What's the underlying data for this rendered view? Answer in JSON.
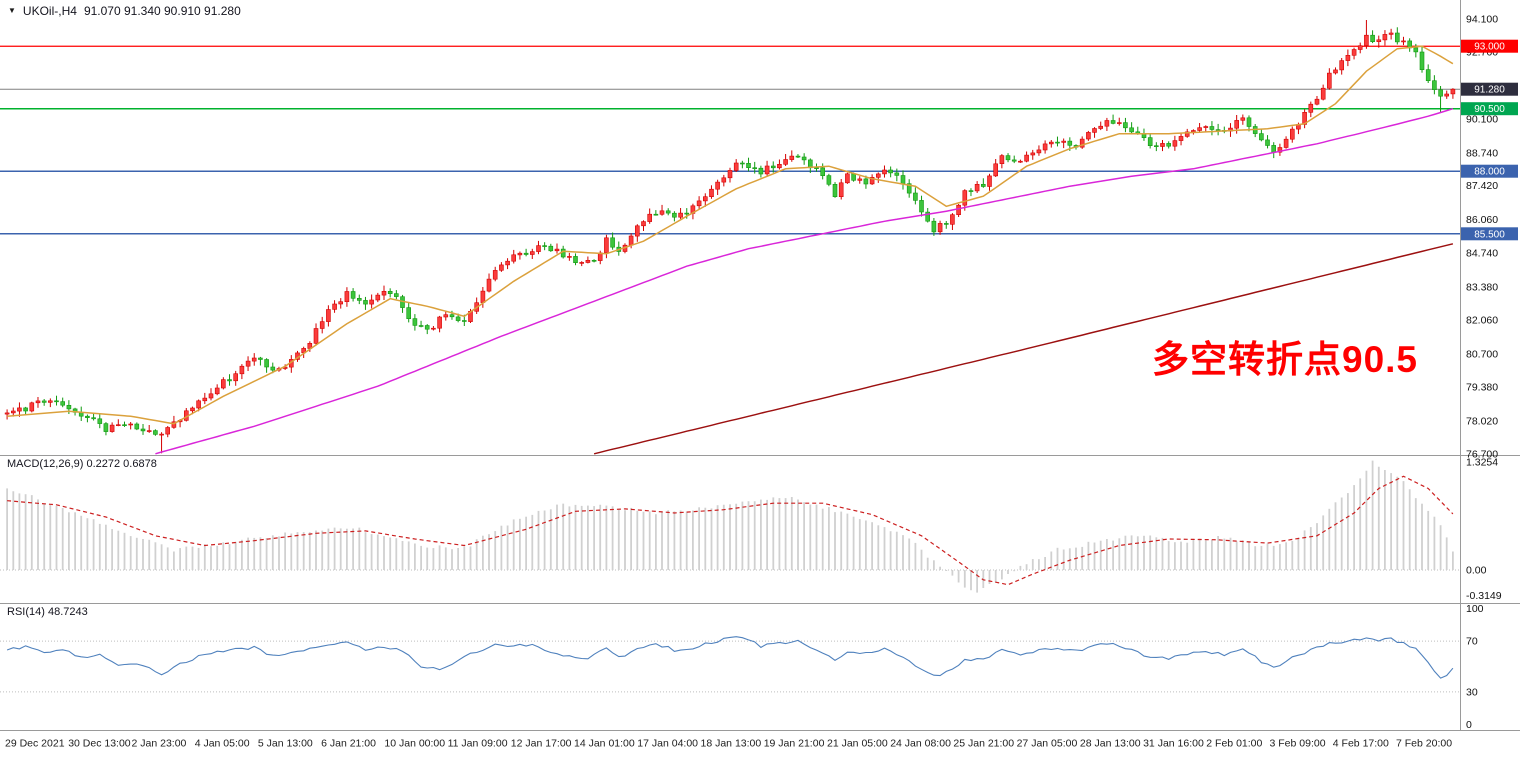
{
  "header": {
    "dropdown_icon": "▼",
    "symbol_title": "UKOil-,H4",
    "ohlc_values": "91.070 91.340 90.910 91.280"
  },
  "indicators": {
    "macd_label": "MACD(12,26,9) 0.2272 0.6878",
    "rsi_label": "RSI(14) 48.7243"
  },
  "annotation": {
    "text": "多空转折点90.5",
    "color": "#ff0000"
  },
  "chart_data": [
    {
      "type": "candlestick",
      "symbol": "UKOil-",
      "timeframe": "H4",
      "ohlc": {
        "open": 91.07,
        "high": 91.34,
        "low": 90.91,
        "close": 91.28
      },
      "current_price": 91.28,
      "ylim": [
        76.65,
        94.85
      ],
      "y_ticks": [
        94.1,
        92.76,
        90.1,
        88.74,
        87.42,
        86.06,
        84.74,
        83.38,
        82.06,
        80.7,
        79.38,
        78.02,
        76.7
      ],
      "price_lines": [
        {
          "price": 93.0,
          "label": "93.000",
          "line_color": "#ff0000",
          "badge_color": "#ff0000",
          "line_width": 1.2,
          "name": "resistance-93"
        },
        {
          "price": 91.28,
          "label": "91.280",
          "line_color": "#808080",
          "badge_color": "#2e2e3e",
          "line_width": 1.0,
          "name": "current-price"
        },
        {
          "price": 90.5,
          "label": "90.500",
          "line_color": "#00b22d",
          "badge_color": "#00a651",
          "line_width": 1.5,
          "name": "pivot-90-5"
        },
        {
          "price": 88.0,
          "label": "88.000",
          "line_color": "#3b63ae",
          "badge_color": "#3b63ae",
          "line_width": 1.6,
          "name": "support-88"
        },
        {
          "price": 85.5,
          "label": "85.500",
          "line_color": "#3b63ae",
          "badge_color": "#3b63ae",
          "line_width": 1.6,
          "name": "support-85-5"
        }
      ],
      "x_labels": [
        "29 Dec 2021",
        "30 Dec 13:00",
        "2 Jan 23:00",
        "4 Jan 05:00",
        "5 Jan 13:00",
        "6 Jan 21:00",
        "10 Jan 00:00",
        "11 Jan 09:00",
        "12 Jan 17:00",
        "14 Jan 01:00",
        "17 Jan 04:00",
        "18 Jan 13:00",
        "19 Jan 21:00",
        "21 Jan 05:00",
        "24 Jan 08:00",
        "25 Jan 21:00",
        "27 Jan 05:00",
        "28 Jan 13:00",
        "31 Jan 16:00",
        "2 Feb 01:00",
        "3 Feb 09:00",
        "4 Feb 17:00",
        "7 Feb 20:00"
      ],
      "candle_count": 235,
      "close_anchors": [
        [
          0,
          78.3
        ],
        [
          5,
          78.7
        ],
        [
          8,
          78.8
        ],
        [
          12,
          78.3
        ],
        [
          16,
          77.7
        ],
        [
          19,
          77.9
        ],
        [
          22,
          77.7
        ],
        [
          25,
          77.4
        ],
        [
          28,
          78.1
        ],
        [
          33,
          79.2
        ],
        [
          38,
          80.1
        ],
        [
          40,
          80.6
        ],
        [
          43,
          80.0
        ],
        [
          46,
          80.4
        ],
        [
          49,
          81.2
        ],
        [
          52,
          82.4
        ],
        [
          55,
          83.1
        ],
        [
          58,
          82.7
        ],
        [
          61,
          83.2
        ],
        [
          63,
          82.9
        ],
        [
          66,
          81.9
        ],
        [
          68,
          81.6
        ],
        [
          71,
          82.3
        ],
        [
          74,
          81.9
        ],
        [
          77,
          83.3
        ],
        [
          80,
          84.3
        ],
        [
          83,
          84.7
        ],
        [
          86,
          85.0
        ],
        [
          89,
          84.8
        ],
        [
          92,
          84.4
        ],
        [
          95,
          84.3
        ],
        [
          97,
          85.3
        ],
        [
          99,
          84.7
        ],
        [
          102,
          85.8
        ],
        [
          105,
          86.4
        ],
        [
          108,
          86.1
        ],
        [
          111,
          86.5
        ],
        [
          114,
          87.3
        ],
        [
          117,
          88.0
        ],
        [
          119,
          88.4
        ],
        [
          122,
          88.0
        ],
        [
          125,
          88.3
        ],
        [
          128,
          88.6
        ],
        [
          131,
          88.1
        ],
        [
          134,
          87.1
        ],
        [
          136,
          87.8
        ],
        [
          139,
          87.6
        ],
        [
          142,
          88.1
        ],
        [
          145,
          87.6
        ],
        [
          148,
          86.3
        ],
        [
          150,
          85.7
        ],
        [
          152,
          85.9
        ],
        [
          155,
          87.2
        ],
        [
          158,
          87.5
        ],
        [
          161,
          88.6
        ],
        [
          164,
          88.4
        ],
        [
          167,
          88.9
        ],
        [
          170,
          89.2
        ],
        [
          173,
          89.0
        ],
        [
          176,
          89.8
        ],
        [
          179,
          90.0
        ],
        [
          182,
          89.6
        ],
        [
          185,
          89.1
        ],
        [
          188,
          89.0
        ],
        [
          191,
          89.5
        ],
        [
          194,
          89.8
        ],
        [
          197,
          89.6
        ],
        [
          200,
          90.2
        ],
        [
          203,
          89.3
        ],
        [
          205,
          88.8
        ],
        [
          208,
          89.6
        ],
        [
          211,
          90.6
        ],
        [
          214,
          91.8
        ],
        [
          217,
          92.6
        ],
        [
          220,
          93.4
        ],
        [
          222,
          93.2
        ],
        [
          224,
          93.5
        ],
        [
          226,
          93.1
        ],
        [
          228,
          92.7
        ],
        [
          230,
          91.6
        ],
        [
          232,
          90.9
        ],
        [
          234,
          91.28
        ]
      ],
      "wick_overrides": {
        "25": {
          "low": 76.72
        },
        "220": {
          "high": 94.05
        },
        "232": {
          "low": 90.35
        }
      },
      "moving_averages": [
        {
          "name": "MA long",
          "color": "#9c1010",
          "anchors": [
            [
              95,
              76.7
            ],
            [
              165,
              80.9
            ],
            [
              234,
              85.1
            ]
          ]
        },
        {
          "name": "MA slow",
          "color": "#d926d9",
          "anchors": [
            [
              24,
              76.7
            ],
            [
              40,
              77.8
            ],
            [
              60,
              79.4
            ],
            [
              80,
              81.4
            ],
            [
              95,
              82.8
            ],
            [
              110,
              84.2
            ],
            [
              120,
              84.9
            ],
            [
              132,
              85.5
            ],
            [
              142,
              86.0
            ],
            [
              152,
              86.4
            ],
            [
              162,
              86.9
            ],
            [
              172,
              87.4
            ],
            [
              182,
              87.8
            ],
            [
              192,
              88.1
            ],
            [
              202,
              88.6
            ],
            [
              212,
              89.1
            ],
            [
              222,
              89.7
            ],
            [
              230,
              90.2
            ],
            [
              234,
              90.5
            ]
          ]
        },
        {
          "name": "MA fast",
          "color": "#dba13c",
          "anchors": [
            [
              0,
              78.2
            ],
            [
              10,
              78.4
            ],
            [
              20,
              78.2
            ],
            [
              27,
              77.9
            ],
            [
              35,
              79.0
            ],
            [
              45,
              80.2
            ],
            [
              55,
              81.9
            ],
            [
              62,
              82.9
            ],
            [
              68,
              82.6
            ],
            [
              74,
              82.2
            ],
            [
              82,
              83.6
            ],
            [
              90,
              84.8
            ],
            [
              97,
              84.7
            ],
            [
              103,
              85.2
            ],
            [
              110,
              86.2
            ],
            [
              118,
              87.3
            ],
            [
              126,
              88.1
            ],
            [
              133,
              88.2
            ],
            [
              140,
              87.7
            ],
            [
              147,
              87.4
            ],
            [
              152,
              86.6
            ],
            [
              158,
              87.0
            ],
            [
              165,
              88.2
            ],
            [
              172,
              88.9
            ],
            [
              180,
              89.5
            ],
            [
              188,
              89.5
            ],
            [
              196,
              89.6
            ],
            [
              204,
              89.7
            ],
            [
              210,
              89.9
            ],
            [
              215,
              90.7
            ],
            [
              220,
              92.0
            ],
            [
              225,
              92.9
            ],
            [
              229,
              93.0
            ],
            [
              232,
              92.6
            ],
            [
              234,
              92.3
            ]
          ]
        }
      ],
      "colors": {
        "up": "#fa3c3c",
        "up_stroke": "#d40000",
        "down": "#3cc43c",
        "down_stroke": "#0f9a0f"
      }
    },
    {
      "type": "bar",
      "name": "MACD",
      "label": "MACD(12,26,9) 0.2272 0.6878",
      "params": "12,26,9",
      "values": {
        "main": 0.2272,
        "signal": 0.6878
      },
      "scale_ticks": [
        "1.3254",
        "0.00",
        "-0.3149"
      ],
      "hist_color": "#d0d0d0",
      "signal_color": "#cc2020",
      "hist_anchors": [
        [
          0,
          0.98
        ],
        [
          4,
          0.9
        ],
        [
          16,
          0.55
        ],
        [
          27,
          0.25
        ],
        [
          37,
          0.35
        ],
        [
          48,
          0.48
        ],
        [
          56,
          0.52
        ],
        [
          67,
          0.3
        ],
        [
          74,
          0.27
        ],
        [
          83,
          0.65
        ],
        [
          90,
          0.8
        ],
        [
          98,
          0.78
        ],
        [
          104,
          0.7
        ],
        [
          112,
          0.75
        ],
        [
          120,
          0.85
        ],
        [
          127,
          0.9
        ],
        [
          133,
          0.75
        ],
        [
          140,
          0.6
        ],
        [
          146,
          0.4
        ],
        [
          150,
          0.1
        ],
        [
          154,
          -0.15
        ],
        [
          157,
          -0.28
        ],
        [
          161,
          -0.1
        ],
        [
          164,
          0.05
        ],
        [
          170,
          0.25
        ],
        [
          177,
          0.35
        ],
        [
          183,
          0.42
        ],
        [
          190,
          0.35
        ],
        [
          196,
          0.4
        ],
        [
          203,
          0.3
        ],
        [
          208,
          0.35
        ],
        [
          212,
          0.6
        ],
        [
          217,
          0.95
        ],
        [
          221,
          1.3254
        ],
        [
          225,
          1.15
        ],
        [
          228,
          0.9
        ],
        [
          232,
          0.55
        ],
        [
          234,
          0.2272
        ]
      ],
      "signal_anchors": [
        [
          0,
          0.85
        ],
        [
          8,
          0.8
        ],
        [
          16,
          0.65
        ],
        [
          24,
          0.42
        ],
        [
          32,
          0.3
        ],
        [
          40,
          0.36
        ],
        [
          50,
          0.45
        ],
        [
          58,
          0.48
        ],
        [
          66,
          0.38
        ],
        [
          74,
          0.3
        ],
        [
          84,
          0.5
        ],
        [
          92,
          0.72
        ],
        [
          100,
          0.75
        ],
        [
          108,
          0.7
        ],
        [
          116,
          0.74
        ],
        [
          124,
          0.82
        ],
        [
          132,
          0.82
        ],
        [
          140,
          0.68
        ],
        [
          148,
          0.42
        ],
        [
          154,
          0.1
        ],
        [
          158,
          -0.12
        ],
        [
          162,
          -0.18
        ],
        [
          166,
          -0.05
        ],
        [
          172,
          0.12
        ],
        [
          180,
          0.3
        ],
        [
          188,
          0.38
        ],
        [
          196,
          0.37
        ],
        [
          204,
          0.33
        ],
        [
          212,
          0.42
        ],
        [
          218,
          0.7
        ],
        [
          222,
          1.0
        ],
        [
          226,
          1.15
        ],
        [
          230,
          1.0
        ],
        [
          234,
          0.6878
        ]
      ]
    },
    {
      "type": "line",
      "name": "RSI",
      "label": "RSI(14) 48.7243",
      "period": 14,
      "value": 48.7243,
      "scale_ticks": [
        "100",
        "70",
        "30",
        "0"
      ],
      "levels": [
        70,
        30
      ],
      "line_color": "#4f81bd",
      "anchors": [
        [
          0,
          63
        ],
        [
          3,
          66
        ],
        [
          6,
          60
        ],
        [
          9,
          64
        ],
        [
          12,
          57
        ],
        [
          15,
          59
        ],
        [
          18,
          50
        ],
        [
          21,
          53
        ],
        [
          25,
          44
        ],
        [
          28,
          52
        ],
        [
          32,
          60
        ],
        [
          36,
          63
        ],
        [
          40,
          65
        ],
        [
          43,
          58
        ],
        [
          46,
          60
        ],
        [
          49,
          64
        ],
        [
          52,
          68
        ],
        [
          55,
          70
        ],
        [
          58,
          63
        ],
        [
          61,
          66
        ],
        [
          64,
          62
        ],
        [
          67,
          50
        ],
        [
          70,
          48
        ],
        [
          73,
          54
        ],
        [
          76,
          62
        ],
        [
          79,
          67
        ],
        [
          82,
          66
        ],
        [
          85,
          67
        ],
        [
          88,
          62
        ],
        [
          91,
          58
        ],
        [
          94,
          56
        ],
        [
          97,
          64
        ],
        [
          99,
          57
        ],
        [
          102,
          64
        ],
        [
          105,
          68
        ],
        [
          108,
          63
        ],
        [
          111,
          65
        ],
        [
          114,
          69
        ],
        [
          117,
          72
        ],
        [
          119,
          73
        ],
        [
          122,
          66
        ],
        [
          125,
          68
        ],
        [
          128,
          70
        ],
        [
          131,
          64
        ],
        [
          134,
          55
        ],
        [
          136,
          62
        ],
        [
          139,
          60
        ],
        [
          142,
          64
        ],
        [
          145,
          58
        ],
        [
          148,
          48
        ],
        [
          150,
          43
        ],
        [
          152,
          45
        ],
        [
          155,
          55
        ],
        [
          158,
          56
        ],
        [
          161,
          63
        ],
        [
          164,
          60
        ],
        [
          167,
          63
        ],
        [
          170,
          65
        ],
        [
          173,
          62
        ],
        [
          176,
          67
        ],
        [
          179,
          68
        ],
        [
          182,
          63
        ],
        [
          185,
          57
        ],
        [
          188,
          56
        ],
        [
          191,
          60
        ],
        [
          194,
          62
        ],
        [
          197,
          59
        ],
        [
          200,
          64
        ],
        [
          203,
          54
        ],
        [
          205,
          49
        ],
        [
          208,
          57
        ],
        [
          211,
          63
        ],
        [
          214,
          68
        ],
        [
          217,
          70
        ],
        [
          220,
          73
        ],
        [
          222,
          70
        ],
        [
          224,
          72
        ],
        [
          226,
          68
        ],
        [
          228,
          64
        ],
        [
          230,
          52
        ],
        [
          232,
          42
        ],
        [
          233,
          44
        ],
        [
          234,
          48.7
        ]
      ]
    }
  ]
}
